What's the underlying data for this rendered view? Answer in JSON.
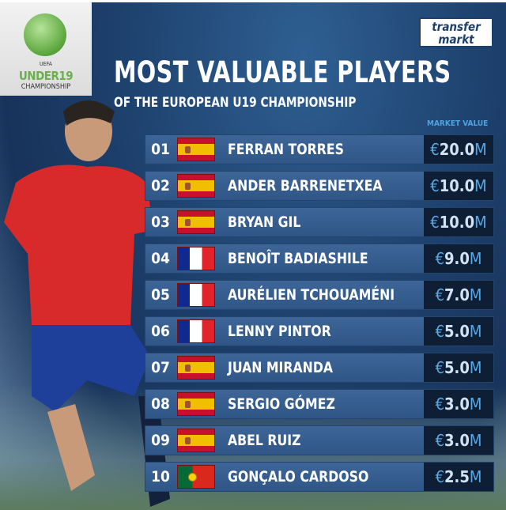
{
  "logo": {
    "uefa": "UEFA",
    "under19": "UNDER19",
    "championship": "CHAMPIONSHIP"
  },
  "brand": {
    "line1": "transfer",
    "line2": "markt"
  },
  "title": "MOST VALUABLE PLAYERS",
  "subtitle": "OF THE EUROPEAN U19 CHAMPIONSHIP",
  "column_header": "MARKET VALUE",
  "currency": "€",
  "unit": "M",
  "players": [
    {
      "rank": "01",
      "flag": "spain",
      "name": "FERRAN TORRES",
      "value": "20.0"
    },
    {
      "rank": "02",
      "flag": "spain",
      "name": "ANDER BARRENETXEA",
      "value": "10.0"
    },
    {
      "rank": "03",
      "flag": "spain",
      "name": "BRYAN GIL",
      "value": "10.0"
    },
    {
      "rank": "04",
      "flag": "france",
      "name": "BENOÎT BADIASHILE",
      "value": "9.0"
    },
    {
      "rank": "05",
      "flag": "france",
      "name": "AURÉLIEN TCHOUAMÉNI",
      "value": "7.0"
    },
    {
      "rank": "06",
      "flag": "france",
      "name": "LENNY PINTOR",
      "value": "5.0"
    },
    {
      "rank": "07",
      "flag": "spain",
      "name": "JUAN MIRANDA",
      "value": "5.0"
    },
    {
      "rank": "08",
      "flag": "spain",
      "name": "SERGIO GÓMEZ",
      "value": "3.0"
    },
    {
      "rank": "09",
      "flag": "spain",
      "name": "ABEL RUIZ",
      "value": "3.0"
    },
    {
      "rank": "10",
      "flag": "portugal",
      "name": "GONÇALO CARDOSO",
      "value": "2.5"
    }
  ],
  "colors": {
    "background": "#1d3f6b",
    "row": "#3d6597",
    "value_box": "#0e1f35",
    "accent": "#5aa9e6"
  }
}
